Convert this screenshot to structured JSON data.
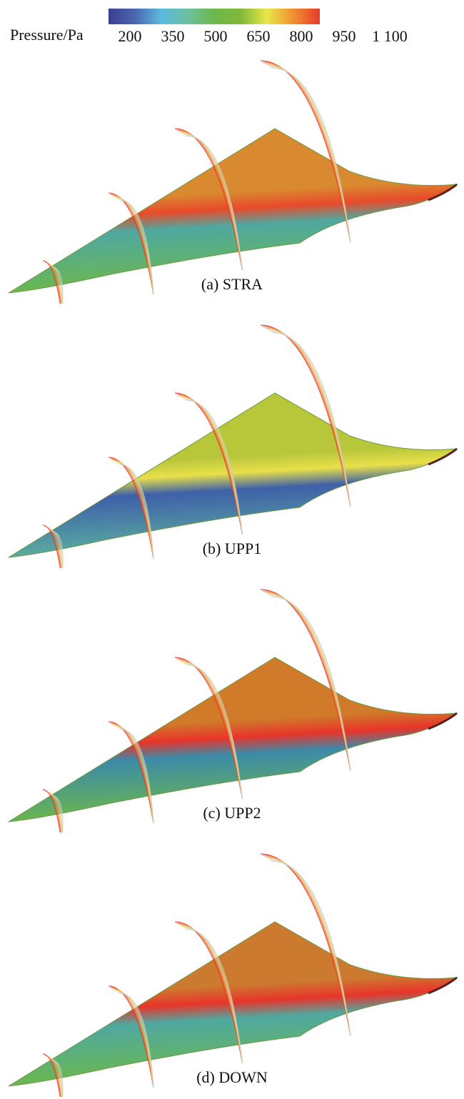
{
  "colorbar": {
    "title": "Pressure/Pa",
    "ticks": [
      "200",
      "350",
      "500",
      "650",
      "800",
      "950",
      "1 100"
    ],
    "range": [
      200,
      1100
    ],
    "colors": [
      "#3b3f8f",
      "#4a66b0",
      "#5bbadf",
      "#6cc0a0",
      "#6db84a",
      "#80b83a",
      "#e8e84a",
      "#f09030",
      "#e83a2a"
    ]
  },
  "panels": [
    {
      "caption": "(a) STRA",
      "upper": "#d98a30",
      "band": "#e84a2a",
      "lower": "#4fa8a0",
      "nose": "#6db84a"
    },
    {
      "caption": "(b) UPP1",
      "upper": "#b8c63a",
      "band": "#e8e04a",
      "lower": "#3f60a8",
      "nose": "#5bb0a0"
    },
    {
      "caption": "(c) UPP2",
      "upper": "#d07a2a",
      "band": "#e8342a",
      "lower": "#3c8aa8",
      "nose": "#6db84a"
    },
    {
      "caption": "(d) DOWN",
      "upper": "#cc7a30",
      "band": "#e8342a",
      "lower": "#4fa8a0",
      "nose": "#6db84a"
    }
  ]
}
